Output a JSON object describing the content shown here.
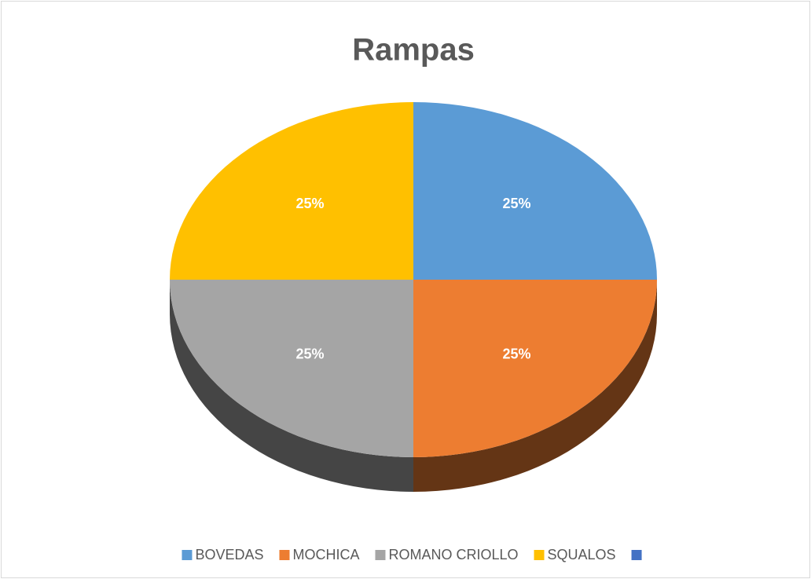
{
  "chart_data": {
    "type": "pie",
    "title": "Rampas",
    "categories": [
      "BOVEDAS",
      "MOCHICA",
      "ROMANO CRIOLLO",
      "SQUALOS",
      null
    ],
    "values": [
      25,
      25,
      25,
      25,
      null
    ],
    "value_labels": [
      "25%",
      "25%",
      "25%",
      "25%",
      null
    ],
    "colors": [
      "#5b9bd5",
      "#ed7d31",
      "#a5a5a5",
      "#ffc000",
      "#4472c4"
    ],
    "legend": "bottom"
  }
}
